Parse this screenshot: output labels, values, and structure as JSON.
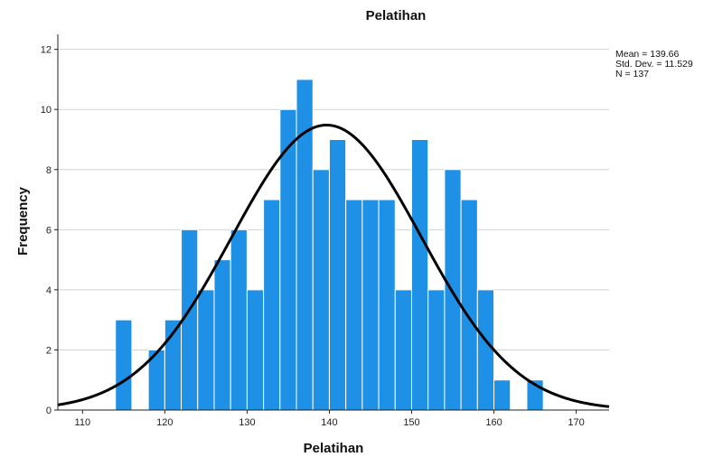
{
  "chart_data": {
    "type": "histogram",
    "title": "Pelatihan",
    "xlabel": "Pelatihan",
    "ylabel": "Frequency",
    "xlim": [
      107,
      174
    ],
    "ylim": [
      0,
      12.5
    ],
    "x_ticks": [
      110,
      120,
      130,
      140,
      150,
      160,
      170
    ],
    "y_ticks": [
      0,
      2,
      4,
      6,
      8,
      10,
      12
    ],
    "grid": true,
    "bin_width": 2,
    "bins": [
      {
        "x0": 114,
        "x1": 116,
        "count": 3
      },
      {
        "x0": 116,
        "x1": 118,
        "count": 0
      },
      {
        "x0": 118,
        "x1": 120,
        "count": 2
      },
      {
        "x0": 120,
        "x1": 122,
        "count": 3
      },
      {
        "x0": 122,
        "x1": 124,
        "count": 6
      },
      {
        "x0": 124,
        "x1": 126,
        "count": 4
      },
      {
        "x0": 126,
        "x1": 128,
        "count": 5
      },
      {
        "x0": 128,
        "x1": 130,
        "count": 6
      },
      {
        "x0": 130,
        "x1": 132,
        "count": 4
      },
      {
        "x0": 132,
        "x1": 134,
        "count": 7
      },
      {
        "x0": 134,
        "x1": 136,
        "count": 10
      },
      {
        "x0": 136,
        "x1": 138,
        "count": 11
      },
      {
        "x0": 138,
        "x1": 140,
        "count": 8
      },
      {
        "x0": 140,
        "x1": 142,
        "count": 9
      },
      {
        "x0": 142,
        "x1": 144,
        "count": 7
      },
      {
        "x0": 144,
        "x1": 146,
        "count": 7
      },
      {
        "x0": 146,
        "x1": 148,
        "count": 7
      },
      {
        "x0": 148,
        "x1": 150,
        "count": 4
      },
      {
        "x0": 150,
        "x1": 152,
        "count": 9
      },
      {
        "x0": 152,
        "x1": 154,
        "count": 4
      },
      {
        "x0": 154,
        "x1": 156,
        "count": 8
      },
      {
        "x0": 156,
        "x1": 158,
        "count": 7
      },
      {
        "x0": 158,
        "x1": 160,
        "count": 4
      },
      {
        "x0": 160,
        "x1": 162,
        "count": 1
      },
      {
        "x0": 162,
        "x1": 164,
        "count": 0
      },
      {
        "x0": 164,
        "x1": 166,
        "count": 1
      }
    ],
    "normal_curve": {
      "mean": 139.66,
      "sd": 11.529,
      "n": 137
    },
    "stats": [
      "Mean = 139.66",
      "Std. Dev. = 11.529",
      "N = 137"
    ],
    "colors": {
      "bar": "#1e90e6",
      "curve": "#000000",
      "grid": "#d2d2d2"
    }
  }
}
